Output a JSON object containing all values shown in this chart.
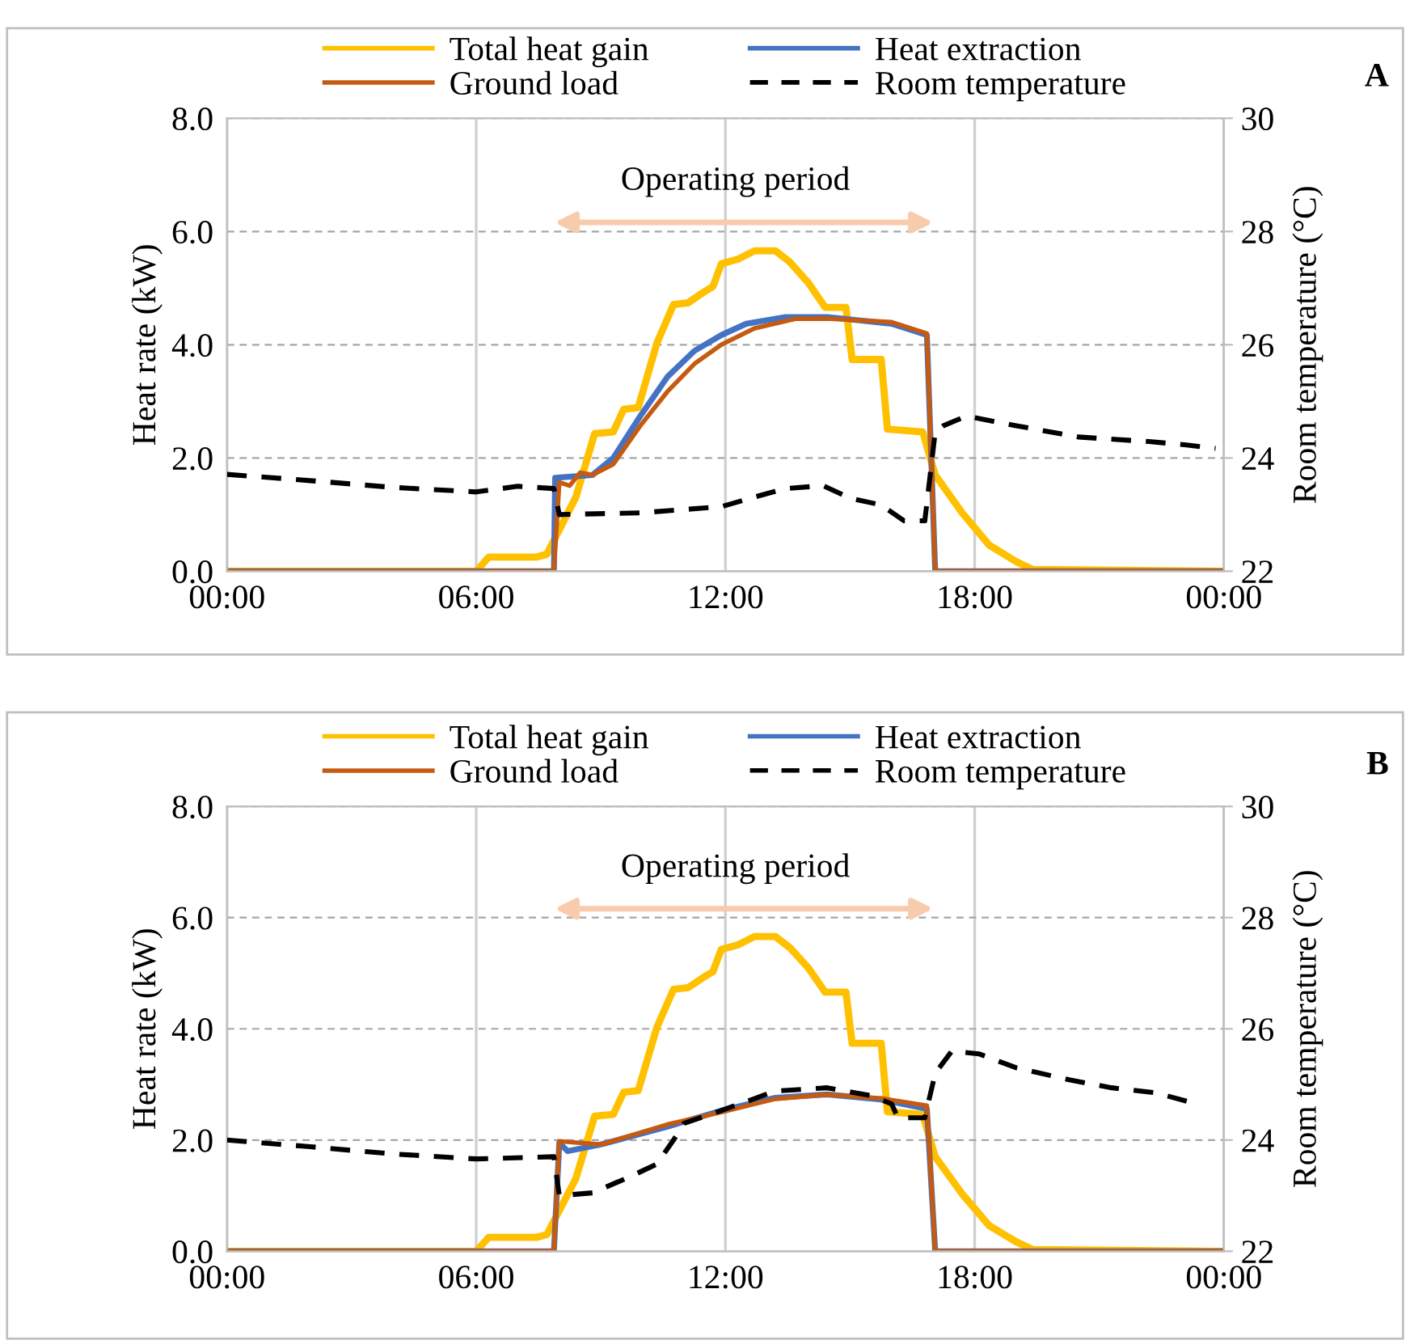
{
  "chart_data": [
    {
      "type": "line",
      "xlabel": null,
      "ylabel": "Heat rate (kW)",
      "y2label": "Room temperature (°C)",
      "annotations": [
        "A",
        "Operating period"
      ],
      "legend": "top",
      "grid": true,
      "line_style": "solid",
      "xlim": [
        0,
        24
      ],
      "xticks": [
        {
          "value": 0,
          "label": "00:00"
        },
        {
          "value": 6,
          "label": "06:00"
        },
        {
          "value": 12,
          "label": "12:00"
        },
        {
          "value": 18,
          "label": "18:00"
        },
        {
          "value": 24,
          "label": "00:00"
        }
      ],
      "ylim": [
        0,
        8
      ],
      "yticks": [
        {
          "value": 0,
          "label": "0.0"
        },
        {
          "value": 2,
          "label": "2.0"
        },
        {
          "value": 4,
          "label": "4.0"
        },
        {
          "value": 6,
          "label": "6.0"
        },
        {
          "value": 8,
          "label": "8.0"
        }
      ],
      "y2lim": [
        22,
        30
      ],
      "y2ticks": [
        22,
        24,
        26,
        28,
        30
      ],
      "series": [
        {
          "name": "Total heat gain",
          "color": "#ffc000",
          "x": [
            0,
            6.0,
            6.3,
            7.45,
            7.7,
            7.95,
            8.4,
            8.85,
            9.3,
            9.55,
            9.9,
            10.35,
            10.75,
            11.1,
            11.5,
            11.7,
            11.9,
            12.3,
            12.7,
            13.2,
            13.55,
            14.0,
            14.4,
            14.9,
            15.05,
            15.75,
            15.9,
            16.75,
            17.05,
            17.7,
            18.35,
            19.0,
            19.4,
            24
          ],
          "values": [
            0,
            0,
            0.25,
            0.25,
            0.3,
            0.66,
            1.31,
            2.43,
            2.46,
            2.86,
            2.89,
            4.03,
            4.71,
            4.74,
            4.94,
            5.03,
            5.43,
            5.51,
            5.66,
            5.66,
            5.46,
            5.09,
            4.66,
            4.66,
            3.74,
            3.74,
            2.51,
            2.46,
            1.7,
            1.03,
            0.46,
            0.17,
            0.03,
            0
          ]
        },
        {
          "name": "Heat extraction",
          "color": "#4472c4",
          "x": [
            0,
            7.87,
            7.9,
            8.8,
            9.3,
            9.95,
            10.6,
            11.25,
            11.9,
            12.5,
            13.45,
            14.45,
            16.0,
            16.85,
            17.05,
            24
          ],
          "values": [
            0,
            0,
            1.65,
            1.7,
            2.0,
            2.74,
            3.43,
            3.89,
            4.17,
            4.37,
            4.49,
            4.49,
            4.37,
            4.17,
            0,
            0
          ]
        },
        {
          "name": "Ground load",
          "color": "#c55a11",
          "x": [
            0,
            7.87,
            8.0,
            8.25,
            8.5,
            8.8,
            9.3,
            9.95,
            10.6,
            11.25,
            11.9,
            12.7,
            13.7,
            14.45,
            16.0,
            16.85,
            17.05,
            24
          ],
          "values": [
            0,
            0,
            1.57,
            1.51,
            1.74,
            1.7,
            1.89,
            2.57,
            3.17,
            3.66,
            4.0,
            4.29,
            4.46,
            4.46,
            4.4,
            4.2,
            0,
            0
          ]
        },
        {
          "name": "Room temperature",
          "color": "#000000",
          "axis": "y2",
          "line_style": "dashed",
          "x": [
            0,
            2,
            4,
            6,
            7,
            7.87,
            8.0,
            9.95,
            11.9,
            12.7,
            13.45,
            14.35,
            15.0,
            15.75,
            16.3,
            16.8,
            17.05,
            17.25,
            17.8,
            19.0,
            20.5,
            22.2,
            23.1,
            23.8
          ],
          "values": [
            23.71,
            23.6,
            23.48,
            23.4,
            23.5,
            23.46,
            23.0,
            23.03,
            23.14,
            23.31,
            23.46,
            23.51,
            23.29,
            23.17,
            22.89,
            22.89,
            24.46,
            24.57,
            24.74,
            24.57,
            24.37,
            24.29,
            24.23,
            24.17
          ]
        }
      ]
    },
    {
      "type": "line",
      "xlabel": null,
      "ylabel": "Heat rate (kW)",
      "y2label": "Room temperature (°C)",
      "annotations": [
        "B",
        "Operating period"
      ],
      "legend": "top",
      "grid": true,
      "line_style": "solid",
      "xlim": [
        0,
        24
      ],
      "xticks": [
        {
          "value": 0,
          "label": "00:00"
        },
        {
          "value": 6,
          "label": "06:00"
        },
        {
          "value": 12,
          "label": "12:00"
        },
        {
          "value": 18,
          "label": "18:00"
        },
        {
          "value": 24,
          "label": "00:00"
        }
      ],
      "ylim": [
        0,
        8
      ],
      "yticks": [
        {
          "value": 0,
          "label": "0.0"
        },
        {
          "value": 2,
          "label": "2.0"
        },
        {
          "value": 4,
          "label": "4.0"
        },
        {
          "value": 6,
          "label": "6.0"
        },
        {
          "value": 8,
          "label": "8.0"
        }
      ],
      "y2lim": [
        22,
        30
      ],
      "y2ticks": [
        22,
        24,
        26,
        28,
        30
      ],
      "series": [
        {
          "name": "Total heat gain",
          "color": "#ffc000",
          "x": [
            0,
            6.0,
            6.3,
            7.45,
            7.7,
            7.95,
            8.4,
            8.85,
            9.3,
            9.55,
            9.9,
            10.35,
            10.75,
            11.1,
            11.5,
            11.7,
            11.9,
            12.3,
            12.7,
            13.2,
            13.55,
            14.0,
            14.4,
            14.9,
            15.05,
            15.75,
            15.9,
            16.75,
            17.05,
            17.7,
            18.35,
            19.0,
            19.4,
            24
          ],
          "values": [
            0,
            0,
            0.25,
            0.25,
            0.3,
            0.66,
            1.31,
            2.43,
            2.46,
            2.86,
            2.89,
            4.03,
            4.71,
            4.74,
            4.94,
            5.03,
            5.43,
            5.51,
            5.66,
            5.66,
            5.46,
            5.09,
            4.66,
            4.66,
            3.74,
            3.74,
            2.51,
            2.46,
            1.7,
            1.03,
            0.46,
            0.17,
            0.03,
            0
          ]
        },
        {
          "name": "Heat extraction",
          "color": "#4472c4",
          "x": [
            0,
            7.87,
            8.0,
            8.2,
            9.0,
            10.6,
            11.9,
            13.2,
            14.45,
            15.75,
            16.85,
            17.05,
            24
          ],
          "values": [
            0,
            0,
            1.95,
            1.8,
            1.92,
            2.24,
            2.53,
            2.76,
            2.82,
            2.73,
            2.56,
            0,
            0
          ]
        },
        {
          "name": "Ground load",
          "color": "#c55a11",
          "x": [
            0,
            7.87,
            8.0,
            9.0,
            10.6,
            11.9,
            13.2,
            14.45,
            15.75,
            16.85,
            17.05,
            24
          ],
          "values": [
            0,
            0,
            1.98,
            1.92,
            2.28,
            2.5,
            2.74,
            2.82,
            2.75,
            2.62,
            0,
            0
          ]
        },
        {
          "name": "Room temperature",
          "color": "#000000",
          "axis": "y2",
          "line_style": "dashed",
          "x": [
            0,
            2,
            4,
            6,
            7.87,
            8.0,
            8.8,
            9.7,
            10.35,
            10.75,
            11.0,
            11.9,
            13.2,
            14.45,
            15.5,
            16.0,
            16.15,
            16.8,
            17.05,
            17.45,
            18.1,
            19.0,
            20.3,
            21.3,
            22.35,
            23.25
          ],
          "values": [
            24.0,
            23.88,
            23.75,
            23.66,
            23.7,
            23.0,
            23.05,
            23.34,
            23.57,
            24.0,
            24.3,
            24.53,
            24.88,
            24.94,
            24.8,
            24.65,
            24.4,
            24.4,
            25.2,
            25.6,
            25.55,
            25.3,
            25.08,
            24.94,
            24.85,
            24.67
          ]
        }
      ]
    }
  ]
}
